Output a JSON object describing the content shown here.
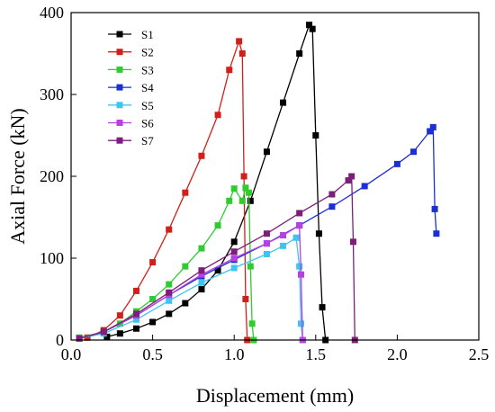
{
  "chart_data": {
    "type": "line",
    "title": "",
    "xlabel": "Displacement (mm)",
    "ylabel": "Axial Force (kN)",
    "xlim": [
      0.0,
      2.5
    ],
    "ylim": [
      0,
      400
    ],
    "xticks": [
      0.0,
      0.5,
      1.0,
      1.5,
      2.0,
      2.5
    ],
    "xtick_labels": [
      "0.0",
      "0.5",
      "1.0",
      "1.5",
      "2.0",
      "2.5"
    ],
    "yticks": [
      0,
      100,
      200,
      300,
      400
    ],
    "ytick_labels": [
      "0",
      "100",
      "200",
      "300",
      "400"
    ],
    "grid": false,
    "legend_position": "top-left",
    "series": [
      {
        "name": "S1",
        "color": "#000000",
        "points": [
          [
            0.22,
            4
          ],
          [
            0.3,
            8
          ],
          [
            0.4,
            14
          ],
          [
            0.5,
            22
          ],
          [
            0.6,
            32
          ],
          [
            0.7,
            45
          ],
          [
            0.8,
            62
          ],
          [
            0.9,
            85
          ],
          [
            1.0,
            120
          ],
          [
            1.1,
            170
          ],
          [
            1.2,
            230
          ],
          [
            1.3,
            290
          ],
          [
            1.4,
            350
          ],
          [
            1.46,
            385
          ],
          [
            1.48,
            380
          ],
          [
            1.5,
            250
          ],
          [
            1.52,
            130
          ],
          [
            1.54,
            40
          ],
          [
            1.56,
            0
          ]
        ]
      },
      {
        "name": "S2",
        "color": "#d0201a",
        "points": [
          [
            0.1,
            3
          ],
          [
            0.2,
            12
          ],
          [
            0.3,
            30
          ],
          [
            0.4,
            60
          ],
          [
            0.5,
            95
          ],
          [
            0.6,
            135
          ],
          [
            0.7,
            180
          ],
          [
            0.8,
            225
          ],
          [
            0.9,
            275
          ],
          [
            0.97,
            330
          ],
          [
            1.03,
            365
          ],
          [
            1.05,
            350
          ],
          [
            1.06,
            200
          ],
          [
            1.07,
            50
          ],
          [
            1.08,
            0
          ]
        ]
      },
      {
        "name": "S3",
        "color": "#2ecc2e",
        "points": [
          [
            0.05,
            3
          ],
          [
            0.2,
            10
          ],
          [
            0.3,
            20
          ],
          [
            0.4,
            35
          ],
          [
            0.5,
            50
          ],
          [
            0.6,
            68
          ],
          [
            0.7,
            90
          ],
          [
            0.8,
            112
          ],
          [
            0.9,
            140
          ],
          [
            0.97,
            170
          ],
          [
            1.0,
            185
          ],
          [
            1.05,
            170
          ],
          [
            1.07,
            186
          ],
          [
            1.09,
            180
          ],
          [
            1.1,
            90
          ],
          [
            1.11,
            20
          ],
          [
            1.12,
            0
          ]
        ]
      },
      {
        "name": "S4",
        "color": "#1c2fd6",
        "points": [
          [
            0.05,
            2
          ],
          [
            0.2,
            10
          ],
          [
            0.4,
            30
          ],
          [
            0.6,
            55
          ],
          [
            0.8,
            78
          ],
          [
            1.0,
            98
          ],
          [
            1.2,
            118
          ],
          [
            1.4,
            140
          ],
          [
            1.6,
            163
          ],
          [
            1.8,
            188
          ],
          [
            2.0,
            215
          ],
          [
            2.1,
            230
          ],
          [
            2.2,
            255
          ],
          [
            2.22,
            260
          ],
          [
            2.23,
            160
          ],
          [
            2.24,
            130
          ]
        ]
      },
      {
        "name": "S5",
        "color": "#3fc4f0",
        "points": [
          [
            0.05,
            2
          ],
          [
            0.2,
            8
          ],
          [
            0.4,
            25
          ],
          [
            0.6,
            48
          ],
          [
            0.8,
            70
          ],
          [
            1.0,
            88
          ],
          [
            1.2,
            105
          ],
          [
            1.3,
            115
          ],
          [
            1.38,
            125
          ],
          [
            1.4,
            90
          ],
          [
            1.41,
            20
          ],
          [
            1.42,
            0
          ]
        ]
      },
      {
        "name": "S6",
        "color": "#b83fe0",
        "points": [
          [
            0.05,
            2
          ],
          [
            0.2,
            10
          ],
          [
            0.4,
            30
          ],
          [
            0.6,
            55
          ],
          [
            0.8,
            80
          ],
          [
            1.0,
            100
          ],
          [
            1.2,
            118
          ],
          [
            1.3,
            128
          ],
          [
            1.4,
            140
          ],
          [
            1.41,
            80
          ],
          [
            1.42,
            0
          ]
        ]
      },
      {
        "name": "S7",
        "color": "#7b1f7a",
        "points": [
          [
            0.05,
            2
          ],
          [
            0.2,
            10
          ],
          [
            0.4,
            32
          ],
          [
            0.6,
            58
          ],
          [
            0.8,
            85
          ],
          [
            1.0,
            108
          ],
          [
            1.2,
            130
          ],
          [
            1.4,
            155
          ],
          [
            1.6,
            178
          ],
          [
            1.7,
            195
          ],
          [
            1.72,
            200
          ],
          [
            1.73,
            120
          ],
          [
            1.74,
            0
          ]
        ]
      }
    ]
  }
}
